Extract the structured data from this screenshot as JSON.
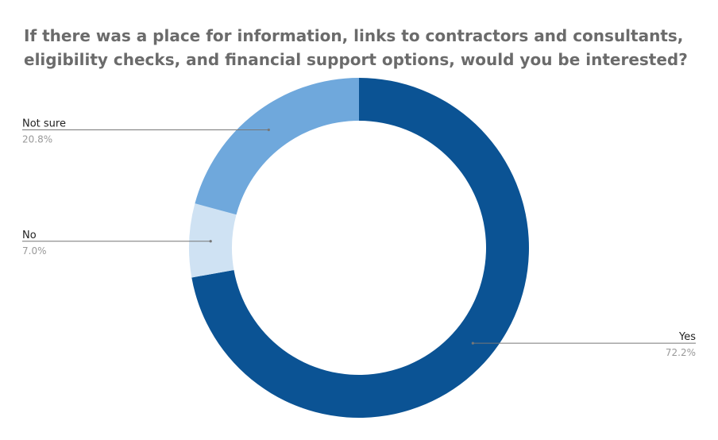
{
  "chart_data": {
    "type": "pie",
    "title": [
      "If there was a place for information, links to contractors and consultants,",
      "eligibility checks, and financial support options, would you be interested?"
    ],
    "slices": [
      {
        "label": "Yes",
        "value": 72.2,
        "display": "72.2%",
        "color": "#0b5394"
      },
      {
        "label": "No",
        "value": 7.0,
        "display": "7.0%",
        "color": "#cfe2f3"
      },
      {
        "label": "Not sure",
        "value": 20.8,
        "display": "20.8%",
        "color": "#6fa8dc"
      }
    ],
    "donut": true,
    "start_angle_deg": 0,
    "direction": "clockwise",
    "label_color": "#222222",
    "value_color": "#999999",
    "leader_color": "#777777"
  }
}
